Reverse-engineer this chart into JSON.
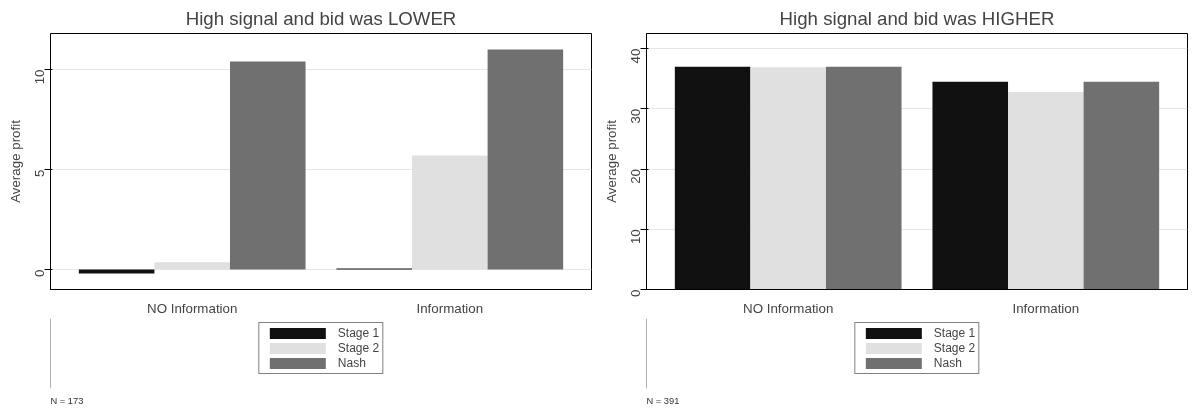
{
  "chart_data": [
    {
      "type": "bar",
      "title": "High signal and bid was LOWER",
      "ylabel": "Average profit",
      "categories": [
        "NO Information",
        "Information"
      ],
      "series": [
        {
          "name": "Stage 1",
          "color": "#111111",
          "values": [
            -0.2,
            0.05
          ]
        },
        {
          "name": "Stage 2",
          "color": "#e0e0e0",
          "values": [
            0.36,
            5.7
          ]
        },
        {
          "name": "Nash",
          "color": "#707070",
          "values": [
            10.4,
            11.0
          ]
        }
      ],
      "ylim": [
        -1.0,
        11.8
      ],
      "yticks": [
        0,
        5,
        10
      ],
      "grid": "y",
      "legend": "bottom",
      "annotations": [
        "N = 173"
      ]
    },
    {
      "type": "bar",
      "title": "High signal and bid was HIGHER",
      "ylabel": "Average profit",
      "categories": [
        "NO Information",
        "Information"
      ],
      "series": [
        {
          "name": "Stage 1",
          "color": "#111111",
          "values": [
            37.0,
            34.5
          ]
        },
        {
          "name": "Stage 2",
          "color": "#e0e0e0",
          "values": [
            36.9,
            32.8
          ]
        },
        {
          "name": "Nash",
          "color": "#707070",
          "values": [
            37.0,
            34.5
          ]
        }
      ],
      "ylim": [
        0,
        42.5
      ],
      "yticks": [
        0,
        10,
        20,
        30,
        40
      ],
      "grid": "y",
      "legend": "bottom",
      "annotations": [
        "N = 391"
      ]
    }
  ]
}
